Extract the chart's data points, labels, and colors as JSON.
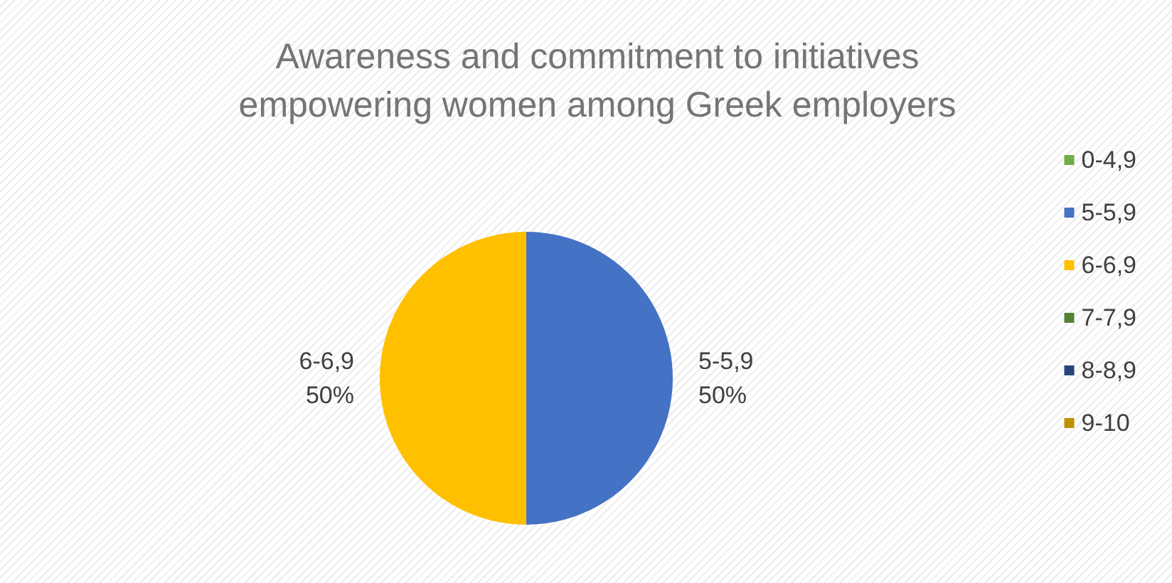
{
  "chart_data": {
    "type": "pie",
    "title": "Awareness and commitment to initiatives\nempowering women among Greek employers",
    "categories": [
      "0-4,9",
      "5-5,9",
      "6-6,9",
      "7-7,9",
      "8-8,9",
      "9-10"
    ],
    "values": [
      0,
      50,
      50,
      0,
      0,
      0
    ],
    "value_labels": [
      null,
      "50%",
      "50%",
      null,
      null,
      null
    ],
    "colors": [
      "#70ad47",
      "#4472c4",
      "#ffc000",
      "#548235",
      "#264478",
      "#bf9000"
    ],
    "legend": "right"
  }
}
